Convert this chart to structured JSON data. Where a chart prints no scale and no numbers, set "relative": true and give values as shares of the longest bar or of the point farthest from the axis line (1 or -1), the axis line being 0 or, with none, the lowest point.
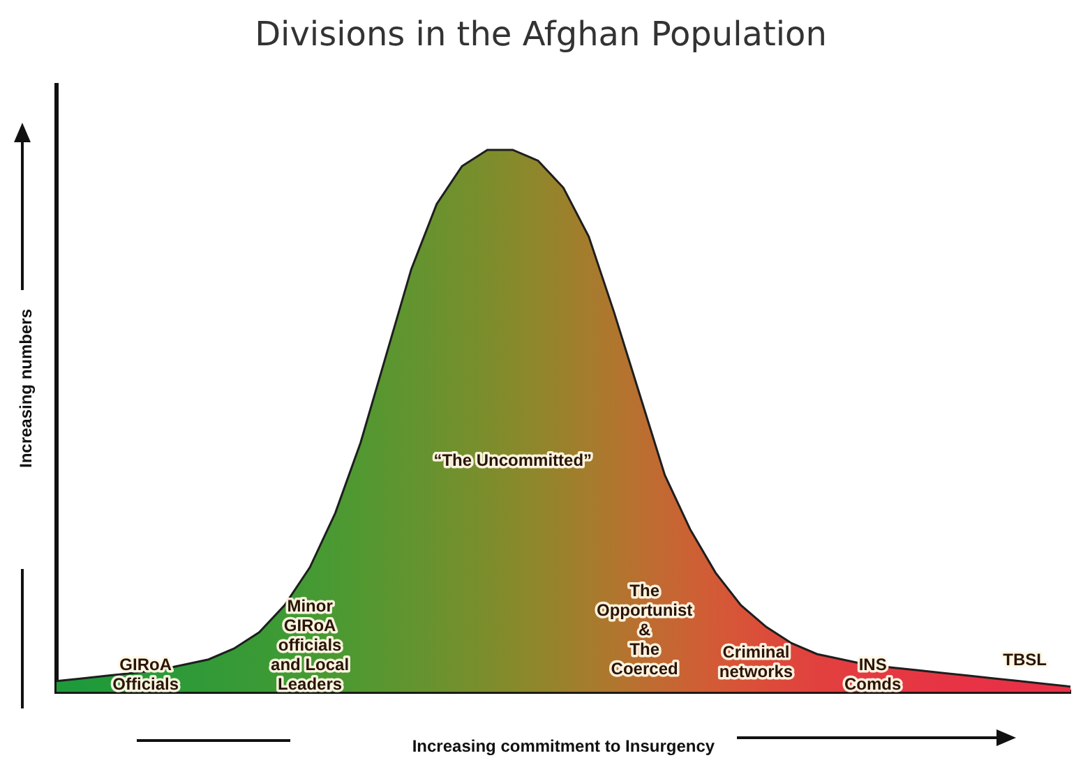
{
  "chart_data": {
    "type": "area",
    "title": "Divisions in the Afghan Population",
    "xlabel": "Increasing commitment to Insurgency",
    "ylabel": "Increasing numbers",
    "relative": true,
    "legend": false,
    "grid": false,
    "categories": [
      null,
      null,
      null,
      null,
      null,
      null,
      null,
      null,
      null,
      null,
      null,
      null,
      null,
      null,
      null,
      null,
      null,
      null,
      null,
      null,
      null,
      null,
      null,
      null,
      null,
      null,
      null,
      null,
      null,
      null,
      null,
      null,
      null,
      null,
      null,
      null,
      null,
      null,
      null,
      null,
      null
    ],
    "series": [
      {
        "color": "#1e1e1e",
        "colors": [
          "#1f9a3a",
          "#1f9a3a",
          "#229a39",
          "#269a39",
          "#2a9a38",
          "#2e9a38",
          "#329a37",
          "#369a36",
          "#3a9a35",
          "#3f9a34",
          "#459a33",
          "#4b9932",
          "#529831",
          "#5a9630",
          "#62942f",
          "#6a922e",
          "#73902d",
          "#7c8d2c",
          "#868a2b",
          "#90862b",
          "#9a812c",
          "#a57c2d",
          "#b0762e",
          "#ba6f30",
          "#c36832",
          "#cc6134",
          "#d35a36",
          "#d85338",
          "#dc4c3a",
          "#df463c",
          "#e1413e",
          "#e33d40",
          "#e43a41",
          "#e53842",
          "#e63643",
          "#e63444",
          "#e73345",
          "#e73245",
          "#e83146",
          "#e83146",
          "#e83146"
        ],
        "values": [
          0.02,
          0.025,
          0.03,
          0.035,
          0.04,
          0.05,
          0.06,
          0.08,
          0.11,
          0.16,
          0.23,
          0.33,
          0.46,
          0.62,
          0.78,
          0.9,
          0.97,
          1.0,
          1.0,
          0.98,
          0.93,
          0.84,
          0.7,
          0.55,
          0.4,
          0.3,
          0.22,
          0.16,
          0.12,
          0.09,
          0.07,
          0.06,
          0.05,
          0.045,
          0.04,
          0.035,
          0.03,
          0.025,
          0.02,
          0.015,
          0.01
        ]
      }
    ],
    "annotations": [
      "GIRoA\nOfficials",
      "Minor\nGIRoA\nofficials\nand Local\nLeaders",
      "“The Uncommitted”",
      "The\nOpportunist\n&\nThe\nCoerced",
      "Criminal\nnetworks",
      "INS\nComds",
      "TBSL"
    ]
  }
}
